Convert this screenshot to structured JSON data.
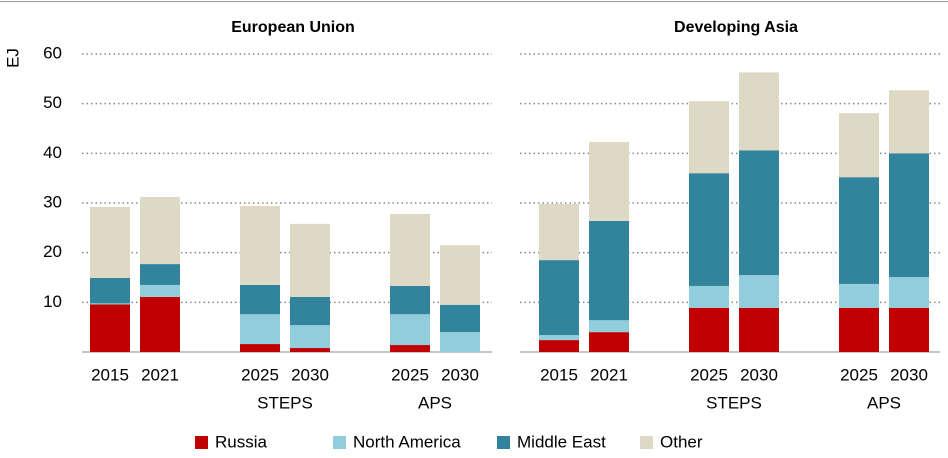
{
  "chart_data": {
    "type": "bar",
    "stacked": true,
    "ylabel": "EJ",
    "ylim": [
      0,
      60
    ],
    "yticks": [
      10,
      20,
      30,
      40,
      50,
      60
    ],
    "grid": true,
    "legend": "bottom",
    "groups": [
      {
        "categories": [
          "2015",
          "2021"
        ]
      },
      {
        "name": "STEPS",
        "categories": [
          "2025",
          "2030"
        ]
      },
      {
        "name": "APS",
        "categories": [
          "2025",
          "2030"
        ]
      }
    ],
    "series": [
      {
        "name": "Russia",
        "color": "#c00000"
      },
      {
        "name": "North America",
        "color": "#92cddc"
      },
      {
        "name": "Middle East",
        "color": "#31849b"
      },
      {
        "name": "Other",
        "color": "#ddd9c4"
      }
    ],
    "panels": [
      {
        "title": "European Union",
        "values": [
          [
            9.6,
            11.1,
            1.6,
            0.8,
            1.4,
            0
          ],
          [
            0.2,
            2.4,
            6.0,
            4.6,
            6.2,
            4.0
          ],
          [
            5.1,
            4.2,
            5.9,
            5.7,
            5.7,
            5.5
          ],
          [
            14.3,
            13.5,
            15.9,
            14.7,
            14.5,
            12.0
          ]
        ]
      },
      {
        "title": "Developing Asia",
        "values": [
          [
            2.4,
            4.0,
            8.9,
            8.9,
            8.9,
            8.9
          ],
          [
            1.0,
            2.4,
            4.4,
            6.6,
            4.8,
            6.2
          ],
          [
            15.1,
            20.0,
            22.7,
            25.1,
            21.5,
            24.9
          ],
          [
            11.3,
            15.9,
            14.5,
            15.7,
            12.9,
            12.7
          ]
        ]
      }
    ]
  }
}
